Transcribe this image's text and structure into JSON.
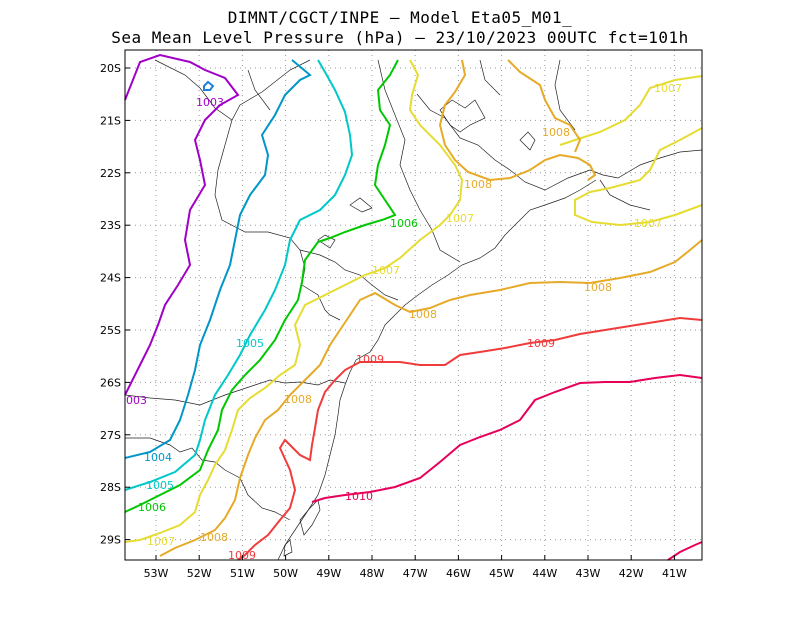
{
  "title": {
    "line1": "DIMNT/CGCT/INPE –  Model Eta05_M01_",
    "line2": "Sea Mean Level Pressure (hPa) – 23/10/2023 00UTC fct=101h"
  },
  "axes": {
    "x_ticks": [
      "53W",
      "52W",
      "51W",
      "50W",
      "49W",
      "48W",
      "47W",
      "46W",
      "45W",
      "44W",
      "43W",
      "42W",
      "41W"
    ],
    "y_ticks": [
      "20S",
      "21S",
      "22S",
      "23S",
      "24S",
      "25S",
      "26S",
      "27S",
      "28S",
      "29S"
    ]
  },
  "contour_labels": [
    {
      "text": "1003",
      "color": "#a000c8"
    },
    {
      "text": "003",
      "color": "#a000c8"
    },
    {
      "text": "1004",
      "color": "#0096c8"
    },
    {
      "text": "1005",
      "color": "#00c8c8"
    },
    {
      "text": "1005",
      "color": "#00c8c8"
    },
    {
      "text": "1006",
      "color": "#00c800"
    },
    {
      "text": "1006",
      "color": "#00c800"
    },
    {
      "text": "1007",
      "color": "#e6dc32"
    },
    {
      "text": "1007",
      "color": "#e6dc32"
    },
    {
      "text": "1007",
      "color": "#e6dc32"
    },
    {
      "text": "1007",
      "color": "#e6dc32"
    },
    {
      "text": "1007",
      "color": "#e6dc32"
    },
    {
      "text": "1008",
      "color": "#e6aa28"
    },
    {
      "text": "1008",
      "color": "#e6aa28"
    },
    {
      "text": "1008",
      "color": "#e6aa28"
    },
    {
      "text": "1008",
      "color": "#e6aa28"
    },
    {
      "text": "1008",
      "color": "#e6aa28"
    },
    {
      "text": "1008",
      "color": "#e6aa28"
    },
    {
      "text": "1009",
      "color": "#f03c3c"
    },
    {
      "text": "1009",
      "color": "#f03c3c"
    },
    {
      "text": "1009",
      "color": "#f03c3c"
    },
    {
      "text": "1010",
      "color": "#e6005a"
    }
  ],
  "colors": {
    "1003": "#a000c8",
    "1004": "#0096c8",
    "1005": "#00c8c8",
    "1006": "#00c800",
    "1007": "#e6dc32",
    "1008": "#e6aa28",
    "1009": "#f03c3c",
    "1010": "#e6005a",
    "grid": "#999999",
    "map_lines": "#222222"
  }
}
